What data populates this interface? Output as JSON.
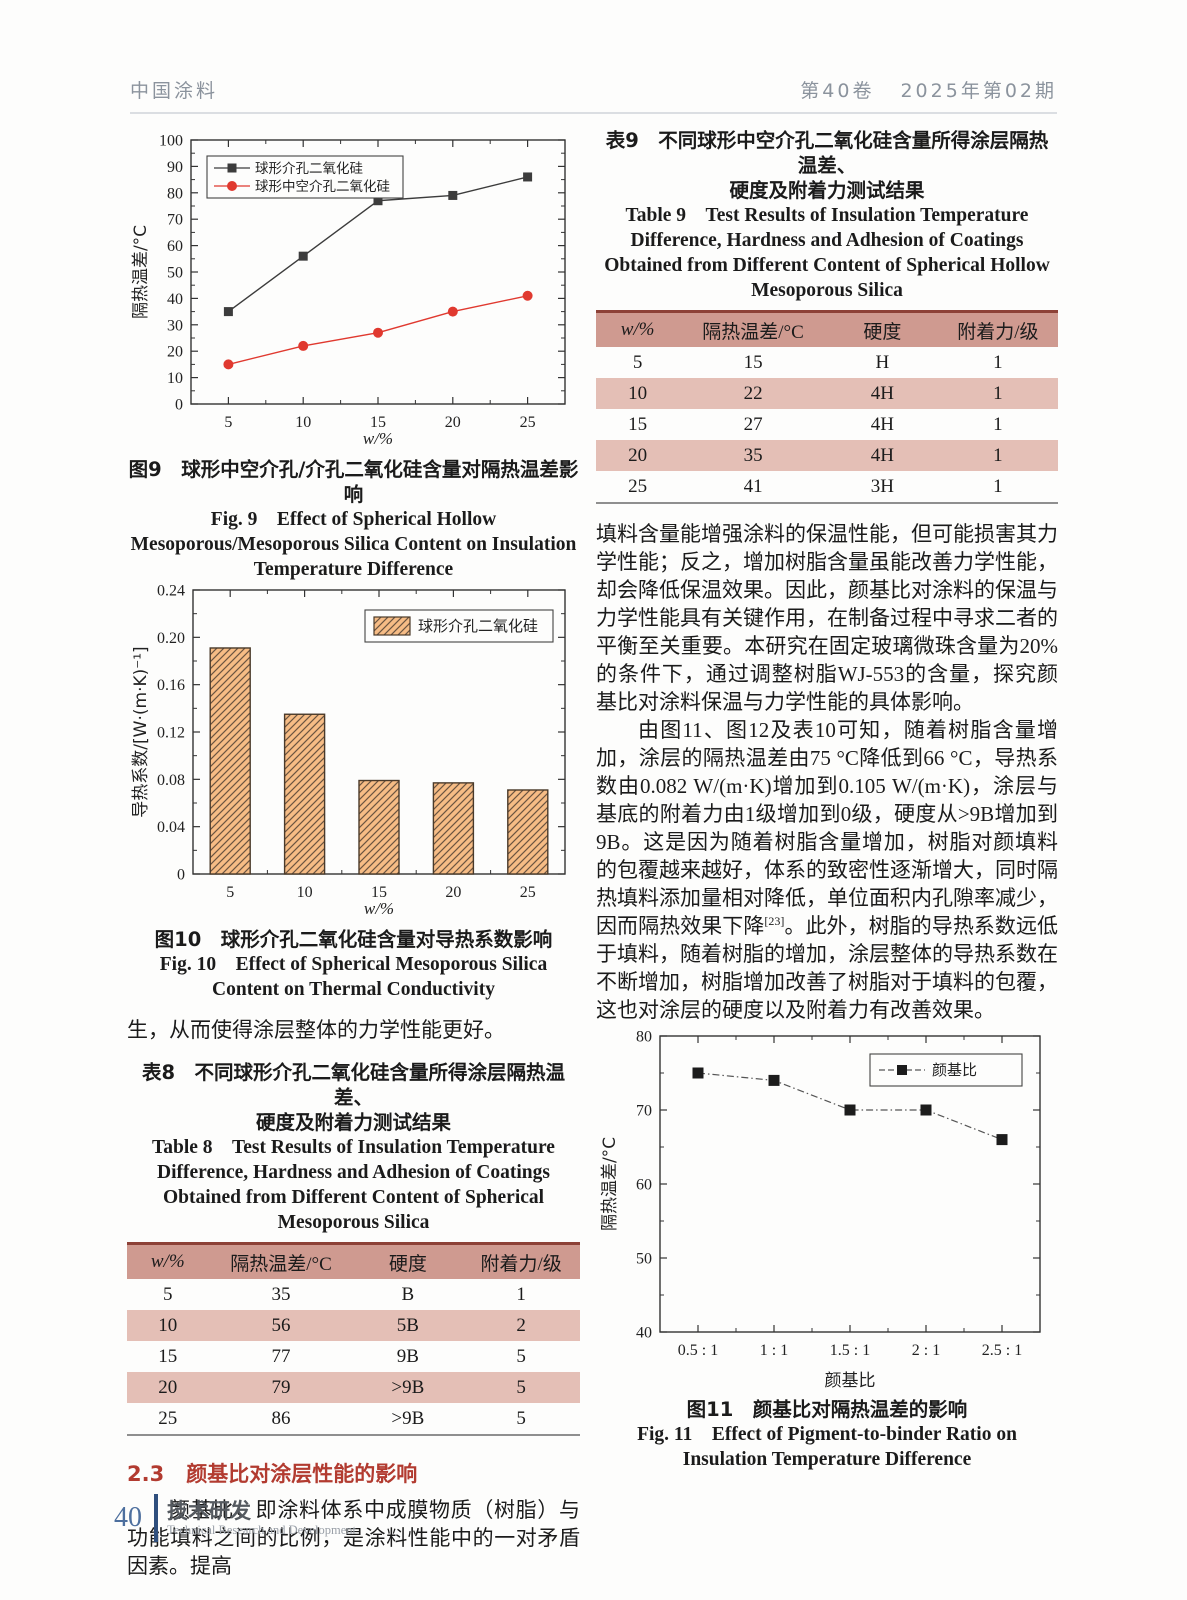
{
  "header": {
    "journal": "中国涂料",
    "volume": "第40卷",
    "issue": "2025年第02期"
  },
  "footer": {
    "page_number": "40",
    "section_cn": "技术研发",
    "section_en": "Technical Research and Development"
  },
  "fig9": {
    "caption_cn": "图9　球形中空介孔/介孔二氧化硅含量对隔热温差影响",
    "caption_en": "Fig. 9　Effect of Spherical Hollow Mesoporous/Mesoporous Silica Content on Insulation Temperature Difference"
  },
  "fig10": {
    "caption_cn": "图10　球形介孔二氧化硅含量对导热系数影响",
    "caption_en": "Fig. 10　Effect of Spherical Mesoporous Silica Content on Thermal Conductivity"
  },
  "fig11": {
    "caption_cn": "图11　颜基比对隔热温差的影响",
    "caption_en": "Fig. 11　Effect of Pigment-to-binder Ratio on Insulation Temperature Difference"
  },
  "table9": {
    "caption_cn_line1": "表9　不同球形中空介孔二氧化硅含量所得涂层隔热温差、",
    "caption_cn_line2": "硬度及附着力测试结果",
    "caption_en": "Table 9　Test Results of Insulation Temperature Difference, Hardness and Adhesion of Coatings Obtained from Different Content of Spherical Hollow Mesoporous Silica",
    "headers": [
      "w/%",
      "隔热温差/°C",
      "硬度",
      "附着力/级"
    ],
    "rows": [
      [
        "5",
        "15",
        "H",
        "1"
      ],
      [
        "10",
        "22",
        "4H",
        "1"
      ],
      [
        "15",
        "27",
        "4H",
        "1"
      ],
      [
        "20",
        "35",
        "4H",
        "1"
      ],
      [
        "25",
        "41",
        "3H",
        "1"
      ]
    ]
  },
  "table8": {
    "caption_cn_line1": "表8　不同球形介孔二氧化硅含量所得涂层隔热温差、",
    "caption_cn_line2": "硬度及附着力测试结果",
    "caption_en": "Table 8　Test Results of Insulation Temperature Difference, Hardness and Adhesion of Coatings Obtained from Different Content of Spherical Mesoporous Silica",
    "headers": [
      "w/%",
      "隔热温差/°C",
      "硬度",
      "附着力/级"
    ],
    "rows": [
      [
        "5",
        "35",
        "B",
        "1"
      ],
      [
        "10",
        "56",
        "5B",
        "2"
      ],
      [
        "15",
        "77",
        "9B",
        "5"
      ],
      [
        "20",
        "79",
        ">9B",
        "5"
      ],
      [
        "25",
        "86",
        ">9B",
        "5"
      ]
    ]
  },
  "text": {
    "left_continuation": "生，从而使得涂层整体的力学性能更好。",
    "section_number": "2.3",
    "section_title": "颜基比对涂层性能的影响",
    "left_para": "颜基比，即涂料体系中成膜物质（树脂）与功能填料之间的比例，是涂料性能中的一对矛盾因素。提高",
    "right_para1": "填料含量能增强涂料的保温性能，但可能损害其力学性能；反之，增加树脂含量虽能改善力学性能，却会降低保温效果。因此，颜基比对涂料的保温与力学性能具有关键作用，在制备过程中寻求二者的平衡至关重要。本研究在固定玻璃微珠含量为20%的条件下，通过调整树脂WJ-553的含量，探究颜基比对涂料保温与力学性能的具体影响。",
    "right_para2_a": "由图11、图12及表10可知，随着树脂含量增加，涂层的隔热温差由75 °C降低到66 °C，导热系数由0.082 W/(m·K)增加到0.105 W/(m·K)，涂层与基底的附着力由1级增加到0级，硬度从>9B增加到9B。这是因为随着树脂含量增加，树脂对颜填料的包覆越来越好，体系的致密性逐渐增大，同时隔热填料添加量相对降低，单位面积内孔隙率减少，因而隔热效果下降",
    "right_para2_sup": "[23]",
    "right_para2_b": "。此外，树脂的导热系数远低于填料，随着树脂的增加，涂层整体的导热系数在不断增加，树脂增加改善了树脂对于填料的包覆，这也对涂层的硬度以及附着力有改善效果。"
  },
  "chart_data": [
    {
      "id": "fig9",
      "type": "line",
      "categories": [
        "5",
        "10",
        "15",
        "20",
        "25"
      ],
      "series": [
        {
          "name": "球形介孔二氧化硅",
          "values": [
            35,
            56,
            77,
            79,
            86
          ],
          "color": "#3c3c3c",
          "marker": "square",
          "dash": false
        },
        {
          "name": "球形中空介孔二氧化硅",
          "values": [
            15,
            22,
            27,
            35,
            41
          ],
          "color": "#e0392f",
          "marker": "circle",
          "dash": false
        }
      ],
      "xlabel": "w/%",
      "ylabel": "隔热温差/°C",
      "ylim": [
        0,
        100
      ],
      "ytick_step": 10,
      "ydecimals": 0,
      "grid": false,
      "legend_position": "top-left"
    },
    {
      "id": "fig10",
      "type": "bar",
      "categories": [
        "5",
        "10",
        "15",
        "20",
        "25"
      ],
      "values": [
        0.191,
        0.135,
        0.079,
        0.077,
        0.071
      ],
      "series_name": "球形介孔二氧化硅",
      "xlabel": "w/%",
      "ylabel": "导热系数/[W·(m·K)⁻¹]",
      "ylim": [
        0,
        0.24
      ],
      "ytick_step": 0.04,
      "ydecimals": 2,
      "bar_fill": "#f6bc85",
      "bar_edge": "#4a3a2a",
      "hatch": "diagonal",
      "grid": false,
      "legend_position": "top-right"
    },
    {
      "id": "fig11",
      "type": "line",
      "categories": [
        "0.5 : 1",
        "1 : 1",
        "1.5 : 1",
        "2 : 1",
        "2.5 : 1"
      ],
      "series": [
        {
          "name": "颜基比",
          "values": [
            75,
            74,
            70,
            70,
            66
          ],
          "color": "#1c1c1c",
          "marker": "square",
          "dash": true
        }
      ],
      "xlabel": "颜基比",
      "ylabel": "隔热温差/°C",
      "ylim": [
        40,
        80
      ],
      "ytick_step": 10,
      "ydecimals": 0,
      "grid": false,
      "legend_position": "top-right"
    }
  ]
}
